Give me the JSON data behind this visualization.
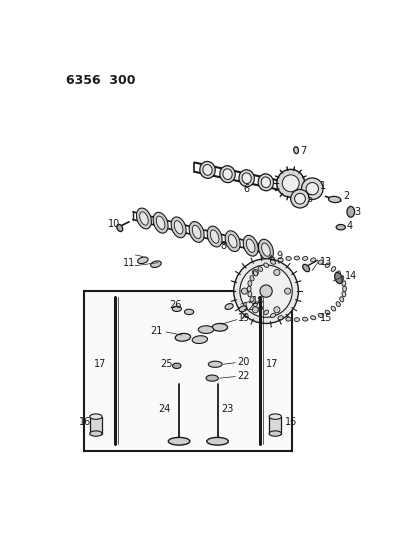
{
  "title": "6356  300",
  "bg_color": "#ffffff",
  "lc": "#1a1a1a",
  "figsize": [
    4.08,
    5.33
  ],
  "dpi": 100
}
